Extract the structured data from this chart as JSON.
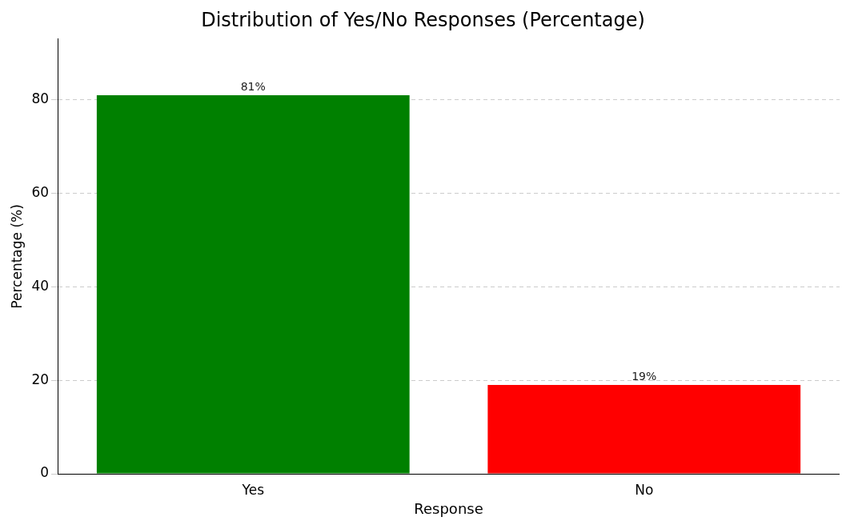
{
  "chart_data": {
    "type": "bar",
    "title": "Distribution of Yes/No Responses (Percentage)",
    "xlabel": "Response",
    "ylabel": "Percentage (%)",
    "categories": [
      "Yes",
      "No"
    ],
    "values": [
      81,
      19
    ],
    "colors": [
      "#008000",
      "#ff0000"
    ],
    "value_labels": [
      "81%",
      "19%"
    ],
    "ylim": [
      0,
      93
    ],
    "yticks": [
      0,
      20,
      40,
      60,
      80
    ],
    "grid": "y",
    "legend": false
  }
}
